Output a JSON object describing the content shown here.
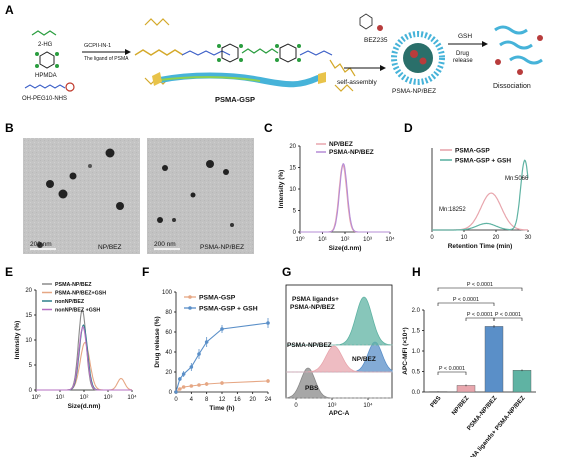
{
  "panels": {
    "A": {
      "label": "A",
      "reagents": [
        "2-HG",
        "HPMDA",
        "OH-PEG10-NHS"
      ],
      "arrow1_top": "GCPII-IN-1",
      "arrow1_bottom": "The ligand of PSMA",
      "polymer_name": "PSMA-GSP",
      "drug_name": "BEZ235",
      "assembly_text": "self-assembly",
      "nanoparticle_name": "PSMA-NP/BEZ",
      "gsh_label": "GSH",
      "release_label1": "Drug",
      "release_label2": "release",
      "dissociation_label": "Dissociation"
    },
    "B": {
      "label": "B",
      "left_caption": "NP/BEZ",
      "right_caption": "PSMA-NP/BEZ",
      "scale_left": "200 nm",
      "scale_right": "200 nm"
    },
    "C": {
      "label": "C"
    },
    "D": {
      "label": "D",
      "mn1": "Mn:18252",
      "mn2": "Mn:5066"
    },
    "E": {
      "label": "E"
    },
    "F": {
      "label": "F"
    },
    "G": {
      "label": "G",
      "legend1a": "PSMA ligands+",
      "legend1b": "PSMA-NP/BEZ",
      "legend2": "PSMA-NP/BEZ",
      "legend3": "NP/BEZ",
      "legend4": "PBS"
    },
    "H": {
      "label": "H"
    }
  },
  "colors": {
    "pink": "#e8a6ad",
    "purple": "#b58cd6",
    "teal": "#5fb3a3",
    "blue": "#5a8fc8",
    "grey": "#8a8a8a",
    "orange": "#e6a784"
  },
  "chart_data": [
    {
      "panel": "C",
      "type": "line",
      "ylabel": "Intensity (%)",
      "xlabel": "Size(d.nm)",
      "xscale": "log",
      "xlim": [
        1,
        10000
      ],
      "ylim": [
        0,
        20
      ],
      "yticks": [
        "0",
        "5",
        "10",
        "15",
        "20"
      ],
      "xticks": [
        "10⁰",
        "10¹",
        "10²",
        "10³",
        "10⁴"
      ],
      "legend_position": "top-right",
      "series": [
        {
          "name": "NP/BEZ",
          "color": "#e8a6ad",
          "peak_x": 80,
          "peak_y": 15.6,
          "width": 0.17
        },
        {
          "name": "PSMA-NP/BEZ",
          "color": "#b58cd6",
          "peak_x": 85,
          "peak_y": 15.9,
          "width": 0.17
        }
      ]
    },
    {
      "panel": "D",
      "type": "line",
      "xlabel": "Retention Time (min)",
      "xlim": [
        0,
        30
      ],
      "xticks": [
        "0",
        "10",
        "20",
        "30"
      ],
      "legend_position": "top-right",
      "series": [
        {
          "name": "PSMA-GSP",
          "color": "#e8a6ad",
          "peak_x": 18.5,
          "peak_y": 0.45,
          "width": 3.2
        },
        {
          "name": "PSMA-GSP + GSH",
          "color": "#5fb3a3",
          "peak_x": 29,
          "peak_y": 0.85,
          "width": 1.3
        }
      ]
    },
    {
      "panel": "E",
      "type": "line",
      "ylabel": "Intensity (%)",
      "xlabel": "Size(d.nm)",
      "xscale": "log",
      "xlim": [
        1,
        10000
      ],
      "ylim": [
        0,
        20
      ],
      "yticks": [
        "0",
        "5",
        "10",
        "15",
        "20"
      ],
      "xticks": [
        "10⁰",
        "10¹",
        "10²",
        "10³",
        "10⁴"
      ],
      "legend_position": "top-left",
      "series": [
        {
          "name": "PSMA-NP/BEZ",
          "color": "#8a8a8a",
          "peak_x": 85,
          "peak_y": 16,
          "width": 0.16
        },
        {
          "name": "PSMA-NP/BEZ+GSH",
          "color": "#e6a784",
          "peak_x": 110,
          "peak_y": 9.5,
          "width": 0.2,
          "second_peak_x": 3500,
          "second_peak_y": 2.3
        },
        {
          "name": "nonNP/BEZ",
          "color": "#2e7f8a",
          "peak_x": 95,
          "peak_y": 13,
          "width": 0.17
        },
        {
          "name": "nonNP/BEZ +GSH",
          "color": "#b56fc2",
          "peak_x": 90,
          "peak_y": 12.6,
          "width": 0.17
        }
      ]
    },
    {
      "panel": "F",
      "type": "line",
      "ylabel": "Drug release (%)",
      "xlabel": "Time (h)",
      "xlim": [
        0,
        24
      ],
      "ylim": [
        0,
        100
      ],
      "xticks": [
        "0",
        "4",
        "8",
        "12",
        "16",
        "20",
        "24"
      ],
      "yticks": [
        "0",
        "20",
        "40",
        "60",
        "80",
        "100"
      ],
      "legend_position": "top-left",
      "series": [
        {
          "name": "PSMA-GSP",
          "color": "#e6a784",
          "x": [
            0,
            1,
            2,
            4,
            6,
            8,
            12,
            24
          ],
          "y": [
            0,
            3,
            5,
            6,
            7,
            8,
            9,
            11
          ],
          "err": [
            0,
            1,
            1,
            1.5,
            1.5,
            2,
            2,
            2
          ]
        },
        {
          "name": "PSMA-GSP + GSH",
          "color": "#5a8fc8",
          "x": [
            0,
            1,
            2,
            4,
            6,
            8,
            12,
            24
          ],
          "y": [
            0,
            13,
            18,
            25,
            38,
            50,
            63,
            69
          ],
          "err": [
            0,
            2,
            3,
            4,
            5,
            5,
            4,
            5
          ]
        }
      ]
    },
    {
      "panel": "G",
      "type": "area",
      "xlabel": "APC-A",
      "xticks": [
        "0",
        "10³",
        "10⁴"
      ],
      "series": [
        {
          "name": "PBS",
          "color": "#8a8a8a"
        },
        {
          "name": "NP/BEZ",
          "color": "#5a8fc8"
        },
        {
          "name": "PSMA-NP/BEZ",
          "color": "#e8a6ad"
        },
        {
          "name": "PSMA ligands+ PSMA-NP/BEZ",
          "color": "#5fb3a3"
        }
      ]
    },
    {
      "panel": "H",
      "type": "bar",
      "ylabel": "APC-MFI (×10⁴)",
      "ylim": [
        0,
        2.0
      ],
      "yticks": [
        "0.0",
        "0.5",
        "1.0",
        "1.5",
        "2.0"
      ],
      "categories": [
        "PBS",
        "NP/BEZ",
        "PSMA-NP/BEZ",
        "PSMA ligands+ PSMA-NP/BEZ"
      ],
      "values": [
        0.01,
        0.16,
        1.6,
        0.53
      ],
      "errors": [
        0.005,
        0.02,
        0.03,
        0.02
      ],
      "bar_colors": [
        "#8a8a8a",
        "#e8a6ad",
        "#5a8fc8",
        "#5fb3a3"
      ],
      "annotations": [
        "P < 0.0001",
        "P < 0.0001",
        "P < 0.0001",
        "P < 0.0001",
        "P < 0.0001"
      ]
    }
  ]
}
